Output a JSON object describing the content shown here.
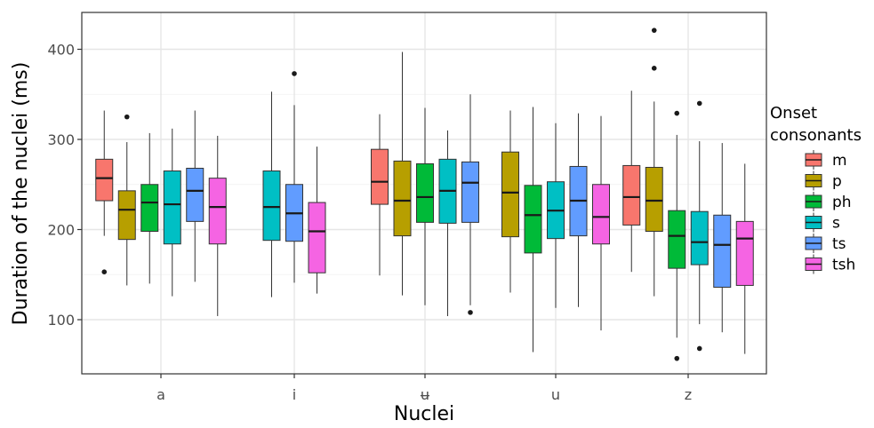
{
  "chart_data": {
    "type": "boxplot",
    "xlabel": "Nuclei",
    "ylabel": "Duration of the nuclei (ms)",
    "categories": [
      "a",
      "i",
      "ʉ",
      "u",
      "z"
    ],
    "ylim": [
      40,
      435
    ],
    "yticks": [
      100,
      200,
      300,
      400
    ],
    "grid": true,
    "legend": {
      "title": [
        "Onset",
        "consonants"
      ],
      "placement": "right"
    },
    "series": [
      {
        "name": "m",
        "color": "#F8766D",
        "boxes": [
          {
            "category": "a",
            "min": 193,
            "q1": 232,
            "median": 257,
            "q3": 278,
            "max": 332,
            "outliers": [
              153
            ]
          },
          null,
          {
            "category": "ʉ",
            "min": 149,
            "q1": 228,
            "median": 253,
            "q3": 289,
            "max": 328,
            "outliers": []
          },
          null,
          {
            "category": "z",
            "min": 153,
            "q1": 205,
            "median": 236,
            "q3": 271,
            "max": 354,
            "outliers": []
          }
        ]
      },
      {
        "name": "p",
        "color": "#B79F00",
        "boxes": [
          {
            "category": "a",
            "min": 138,
            "q1": 189,
            "median": 222,
            "q3": 243,
            "max": 297,
            "outliers": [
              325
            ]
          },
          null,
          {
            "category": "ʉ",
            "min": 127,
            "q1": 193,
            "median": 232,
            "q3": 276,
            "max": 397,
            "outliers": []
          },
          {
            "category": "u",
            "min": 130,
            "q1": 192,
            "median": 241,
            "q3": 286,
            "max": 332,
            "outliers": []
          },
          {
            "category": "z",
            "min": 126,
            "q1": 198,
            "median": 232,
            "q3": 269,
            "max": 342,
            "outliers": [
              421,
              379
            ]
          }
        ]
      },
      {
        "name": "ph",
        "color": "#00BA38",
        "boxes": [
          {
            "category": "a",
            "min": 140,
            "q1": 198,
            "median": 230,
            "q3": 250,
            "max": 307,
            "outliers": []
          },
          null,
          {
            "category": "ʉ",
            "min": 116,
            "q1": 208,
            "median": 236,
            "q3": 273,
            "max": 335,
            "outliers": []
          },
          {
            "category": "u",
            "min": 64,
            "q1": 174,
            "median": 216,
            "q3": 249,
            "max": 336,
            "outliers": []
          },
          {
            "category": "z",
            "min": 80,
            "q1": 157,
            "median": 193,
            "q3": 221,
            "max": 305,
            "outliers": [
              329,
              57
            ]
          }
        ]
      },
      {
        "name": "s",
        "color": "#00BFC4",
        "boxes": [
          {
            "category": "a",
            "min": 126,
            "q1": 184,
            "median": 228,
            "q3": 265,
            "max": 312,
            "outliers": []
          },
          {
            "category": "i",
            "min": 125,
            "q1": 188,
            "median": 225,
            "q3": 265,
            "max": 353,
            "outliers": []
          },
          {
            "category": "ʉ",
            "min": 104,
            "q1": 207,
            "median": 243,
            "q3": 278,
            "max": 310,
            "outliers": []
          },
          {
            "category": "u",
            "min": 113,
            "q1": 190,
            "median": 221,
            "q3": 253,
            "max": 318,
            "outliers": []
          },
          {
            "category": "z",
            "min": 95,
            "q1": 161,
            "median": 186,
            "q3": 220,
            "max": 298,
            "outliers": [
              340,
              68
            ]
          }
        ]
      },
      {
        "name": "ts",
        "color": "#619CFF",
        "boxes": [
          {
            "category": "a",
            "min": 142,
            "q1": 209,
            "median": 243,
            "q3": 268,
            "max": 332,
            "outliers": []
          },
          {
            "category": "i",
            "min": 141,
            "q1": 187,
            "median": 218,
            "q3": 250,
            "max": 338,
            "outliers": [
              373
            ]
          },
          {
            "category": "ʉ",
            "min": 116,
            "q1": 208,
            "median": 252,
            "q3": 275,
            "max": 350,
            "outliers": [
              108
            ]
          },
          {
            "category": "u",
            "min": 114,
            "q1": 193,
            "median": 232,
            "q3": 270,
            "max": 329,
            "outliers": []
          },
          {
            "category": "z",
            "min": 86,
            "q1": 136,
            "median": 183,
            "q3": 216,
            "max": 296,
            "outliers": []
          }
        ]
      },
      {
        "name": "tsh",
        "color": "#F564E3",
        "boxes": [
          {
            "category": "a",
            "min": 104,
            "q1": 184,
            "median": 225,
            "q3": 257,
            "max": 304,
            "outliers": []
          },
          {
            "category": "i",
            "min": 129,
            "q1": 152,
            "median": 198,
            "q3": 230,
            "max": 292,
            "outliers": []
          },
          null,
          {
            "category": "u",
            "min": 88,
            "q1": 184,
            "median": 214,
            "q3": 250,
            "max": 326,
            "outliers": []
          },
          {
            "category": "z",
            "min": 62,
            "q1": 138,
            "median": 190,
            "q3": 209,
            "max": 273,
            "outliers": []
          }
        ]
      }
    ]
  }
}
